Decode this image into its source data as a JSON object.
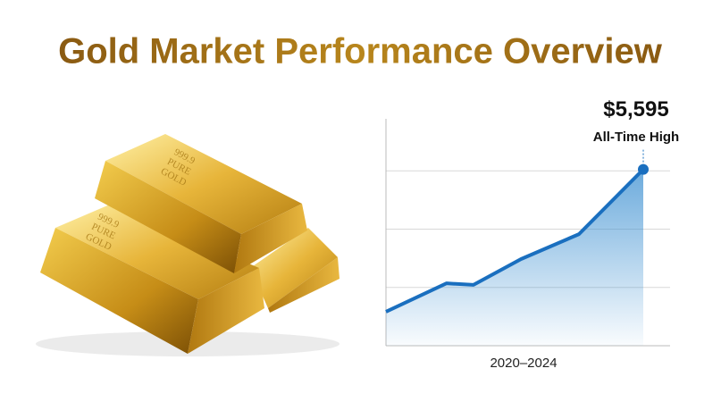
{
  "title": "Gold Market Performance Overview",
  "illustration": {
    "stamp_lines": [
      "999.9",
      "PURE",
      "GOLD"
    ]
  },
  "chart_data": {
    "type": "line",
    "x_label": "2020–2024",
    "x": [
      2020,
      2020.94,
      2021.36,
      2022.1,
      2023,
      2024
    ],
    "values": [
      1080,
      1980,
      1930,
      2750,
      3540,
      5595
    ],
    "value_labels": [
      null,
      null,
      null,
      null,
      null,
      "$5,595"
    ],
    "annotation": "All-Time High",
    "xlim": [
      2020,
      2024
    ],
    "ylim": [
      0,
      7200
    ],
    "yticks": [
      1850,
      3700,
      5550
    ],
    "grid": true,
    "color": "#1a6fbf"
  }
}
